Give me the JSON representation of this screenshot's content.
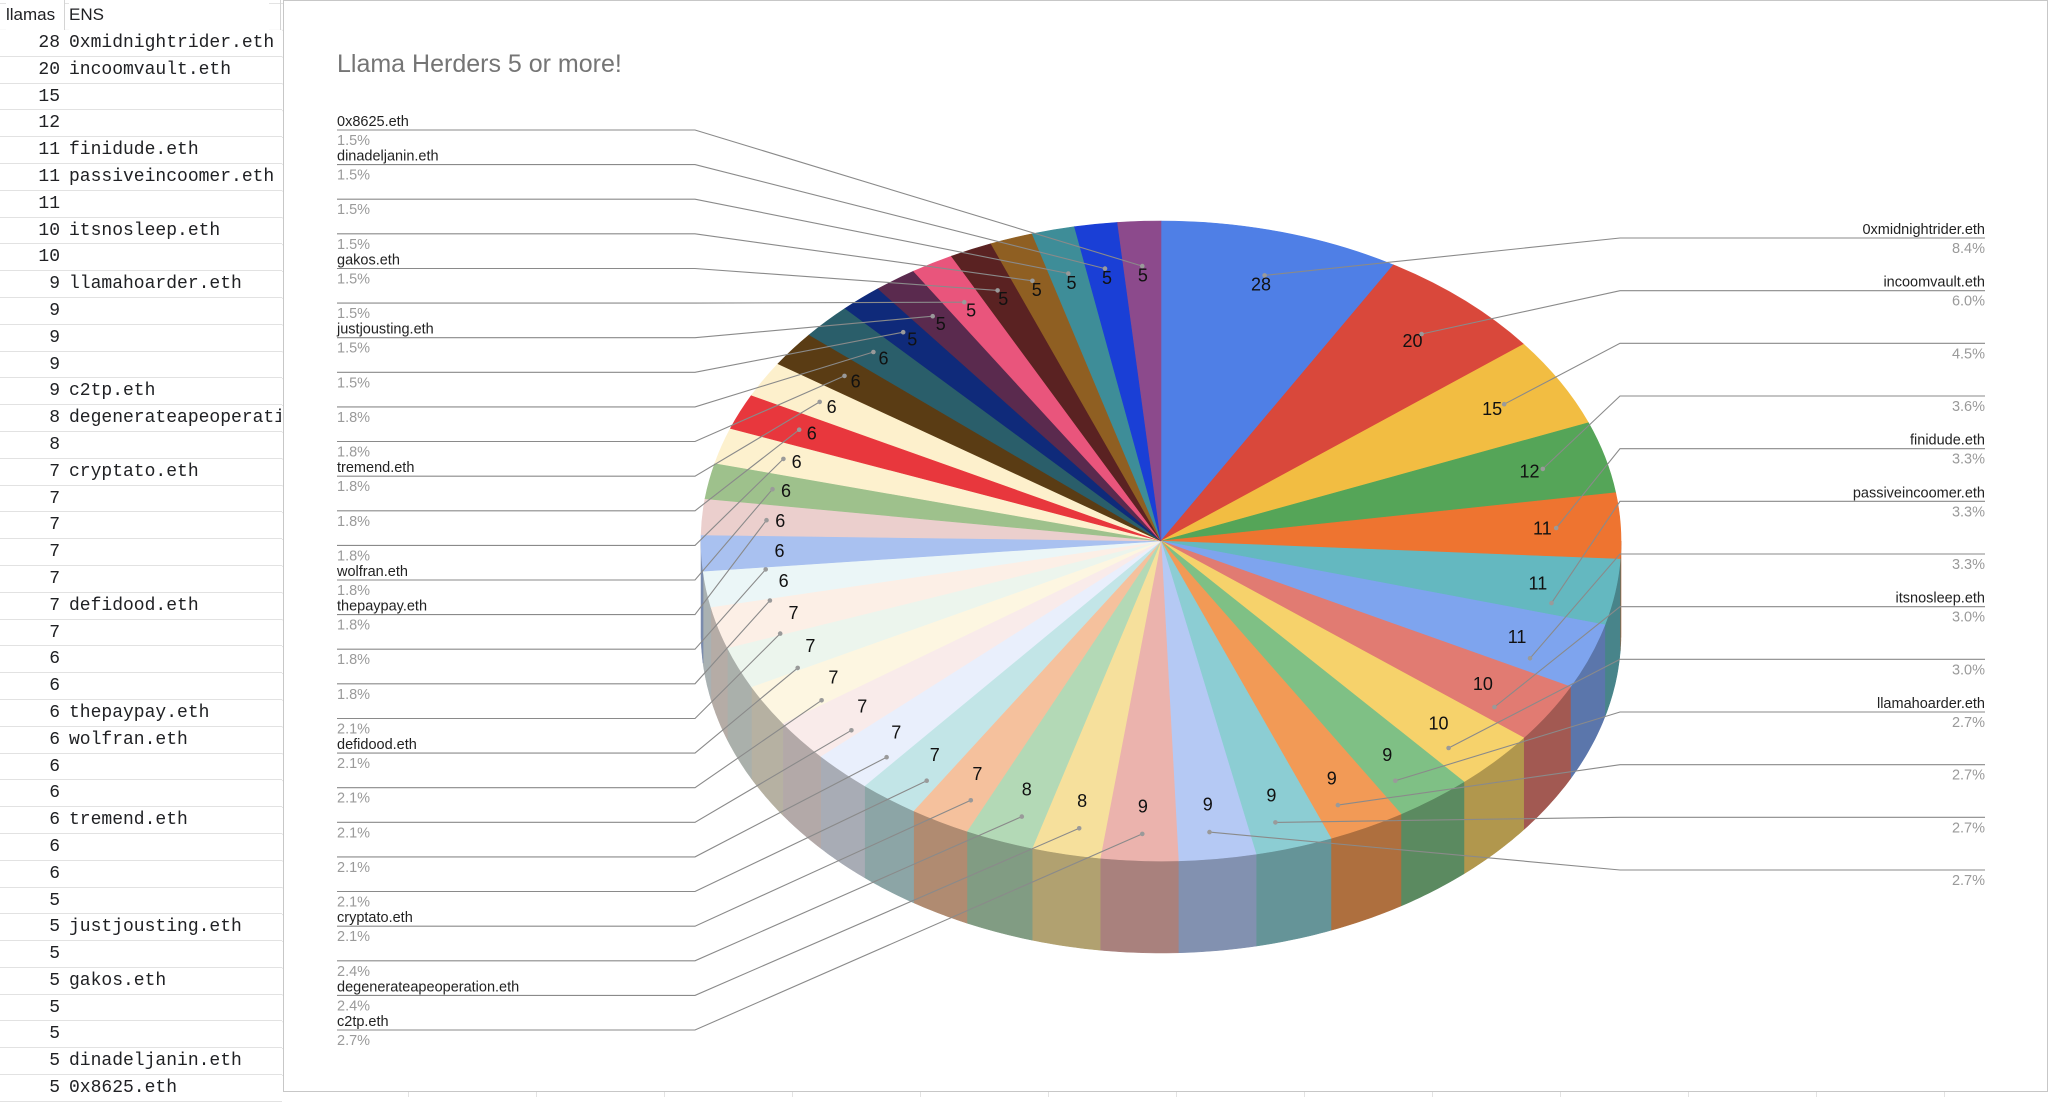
{
  "sheet": {
    "headers": [
      "llamas",
      "ENS"
    ],
    "rows": [
      {
        "n": "28",
        "ens": "0xmidnightrider.eth"
      },
      {
        "n": "20",
        "ens": "incoomvault.eth"
      },
      {
        "n": "15",
        "ens": ""
      },
      {
        "n": "12",
        "ens": ""
      },
      {
        "n": "11",
        "ens": "finidude.eth"
      },
      {
        "n": "11",
        "ens": "passiveincoomer.eth"
      },
      {
        "n": "11",
        "ens": ""
      },
      {
        "n": "10",
        "ens": "itsnosleep.eth"
      },
      {
        "n": "10",
        "ens": ""
      },
      {
        "n": "9",
        "ens": "llamahoarder.eth"
      },
      {
        "n": "9",
        "ens": ""
      },
      {
        "n": "9",
        "ens": ""
      },
      {
        "n": "9",
        "ens": ""
      },
      {
        "n": "9",
        "ens": "c2tp.eth"
      },
      {
        "n": "8",
        "ens": "degenerateapeoperatio"
      },
      {
        "n": "8",
        "ens": ""
      },
      {
        "n": "7",
        "ens": "cryptato.eth"
      },
      {
        "n": "7",
        "ens": ""
      },
      {
        "n": "7",
        "ens": ""
      },
      {
        "n": "7",
        "ens": ""
      },
      {
        "n": "7",
        "ens": ""
      },
      {
        "n": "7",
        "ens": "defidood.eth"
      },
      {
        "n": "7",
        "ens": ""
      },
      {
        "n": "6",
        "ens": ""
      },
      {
        "n": "6",
        "ens": ""
      },
      {
        "n": "6",
        "ens": "thepaypay.eth"
      },
      {
        "n": "6",
        "ens": "wolfran.eth"
      },
      {
        "n": "6",
        "ens": ""
      },
      {
        "n": "6",
        "ens": ""
      },
      {
        "n": "6",
        "ens": "tremend.eth"
      },
      {
        "n": "6",
        "ens": ""
      },
      {
        "n": "6",
        "ens": ""
      },
      {
        "n": "5",
        "ens": ""
      },
      {
        "n": "5",
        "ens": "justjousting.eth"
      },
      {
        "n": "5",
        "ens": ""
      },
      {
        "n": "5",
        "ens": "gakos.eth"
      },
      {
        "n": "5",
        "ens": ""
      },
      {
        "n": "5",
        "ens": ""
      },
      {
        "n": "5",
        "ens": "dinadeljanin.eth"
      },
      {
        "n": "5",
        "ens": "0x8625.eth"
      }
    ]
  },
  "chart": {
    "title": "Llama Herders 5 or more!"
  },
  "chart_data": {
    "type": "pie",
    "style": "3d",
    "title": "Llama Herders 5 or more!",
    "legend": "labels-with-leader-lines",
    "slices": [
      {
        "value": 28,
        "label": "0xmidnightrider.eth",
        "pct": "8.4%",
        "color": "#4f7fe6"
      },
      {
        "value": 20,
        "label": "incoomvault.eth",
        "pct": "6.0%",
        "color": "#d9483b"
      },
      {
        "value": 15,
        "label": "",
        "pct": "4.5%",
        "color": "#f2bd42"
      },
      {
        "value": 12,
        "label": "",
        "pct": "3.6%",
        "color": "#55a558"
      },
      {
        "value": 11,
        "label": "finidude.eth",
        "pct": "3.3%",
        "color": "#ee7430"
      },
      {
        "value": 11,
        "label": "passiveincoomer.eth",
        "pct": "3.3%",
        "color": "#64b8c0"
      },
      {
        "value": 11,
        "label": "",
        "pct": "3.3%",
        "color": "#7ea4ee"
      },
      {
        "value": 10,
        "label": "itsnosleep.eth",
        "pct": "3.0%",
        "color": "#e17b72"
      },
      {
        "value": 10,
        "label": "",
        "pct": "3.0%",
        "color": "#f6d26b"
      },
      {
        "value": 9,
        "label": "llamahoarder.eth",
        "pct": "2.7%",
        "color": "#7fc085"
      },
      {
        "value": 9,
        "label": "",
        "pct": "2.7%",
        "color": "#f29a56"
      },
      {
        "value": 9,
        "label": "",
        "pct": "2.7%",
        "color": "#8ccdd3"
      },
      {
        "value": 9,
        "label": "",
        "pct": "2.7%",
        "color": "#b5c9f4"
      },
      {
        "value": 9,
        "label": "c2tp.eth",
        "pct": "2.7%",
        "color": "#ebb3ad"
      },
      {
        "value": 8,
        "label": "degenerateapeoperation.eth",
        "pct": "2.4%",
        "color": "#f6e09c"
      },
      {
        "value": 8,
        "label": "",
        "pct": "2.4%",
        "color": "#b3d9b6"
      },
      {
        "value": 7,
        "label": "cryptato.eth",
        "pct": "2.1%",
        "color": "#f5c19d"
      },
      {
        "value": 7,
        "label": "",
        "pct": "2.1%",
        "color": "#c2e5e7"
      },
      {
        "value": 7,
        "label": "",
        "pct": "2.1%",
        "color": "#e9effc"
      },
      {
        "value": 7,
        "label": "",
        "pct": "2.1%",
        "color": "#f9ebea"
      },
      {
        "value": 7,
        "label": "",
        "pct": "2.1%",
        "color": "#fdf6e1"
      },
      {
        "value": 7,
        "label": "defidood.eth",
        "pct": "2.1%",
        "color": "#ecf5ed"
      },
      {
        "value": 7,
        "label": "",
        "pct": "2.1%",
        "color": "#fcefe6"
      },
      {
        "value": 6,
        "label": "",
        "pct": "1.8%",
        "color": "#ebf6f7"
      },
      {
        "value": 6,
        "label": "",
        "pct": "1.8%",
        "color": "#a9c1f0"
      },
      {
        "value": 6,
        "label": "thepaypay.eth",
        "pct": "1.8%",
        "color": "#ebcfcd"
      },
      {
        "value": 6,
        "label": "wolfran.eth",
        "pct": "1.8%",
        "color": "#9ec18c"
      },
      {
        "value": 6,
        "label": "",
        "pct": "1.8%",
        "color": "#fdf1ce"
      },
      {
        "value": 6,
        "label": "",
        "pct": "1.8%",
        "color": "#e8373d"
      },
      {
        "value": 6,
        "label": "tremend.eth",
        "pct": "1.8%",
        "color": "#fdf0cc"
      },
      {
        "value": 6,
        "label": "",
        "pct": "1.8%",
        "color": "#5a3c14"
      },
      {
        "value": 6,
        "label": "",
        "pct": "1.8%",
        "color": "#2a5e6a"
      },
      {
        "value": 5,
        "label": "",
        "pct": "1.5%",
        "color": "#0f2a7a"
      },
      {
        "value": 5,
        "label": "justjousting.eth",
        "pct": "1.5%",
        "color": "#5a2a4e"
      },
      {
        "value": 5,
        "label": "",
        "pct": "1.5%",
        "color": "#e9557c"
      },
      {
        "value": 5,
        "label": "gakos.eth",
        "pct": "1.5%",
        "color": "#5a2222"
      },
      {
        "value": 5,
        "label": "",
        "pct": "1.5%",
        "color": "#8f5f22"
      },
      {
        "value": 5,
        "label": "",
        "pct": "1.5%",
        "color": "#3e8d98"
      },
      {
        "value": 5,
        "label": "dinadeljanin.eth",
        "pct": "1.5%",
        "color": "#1a3fd6"
      },
      {
        "value": 5,
        "label": "0x8625.eth",
        "pct": "1.5%",
        "color": "#8c4a8c"
      }
    ]
  }
}
